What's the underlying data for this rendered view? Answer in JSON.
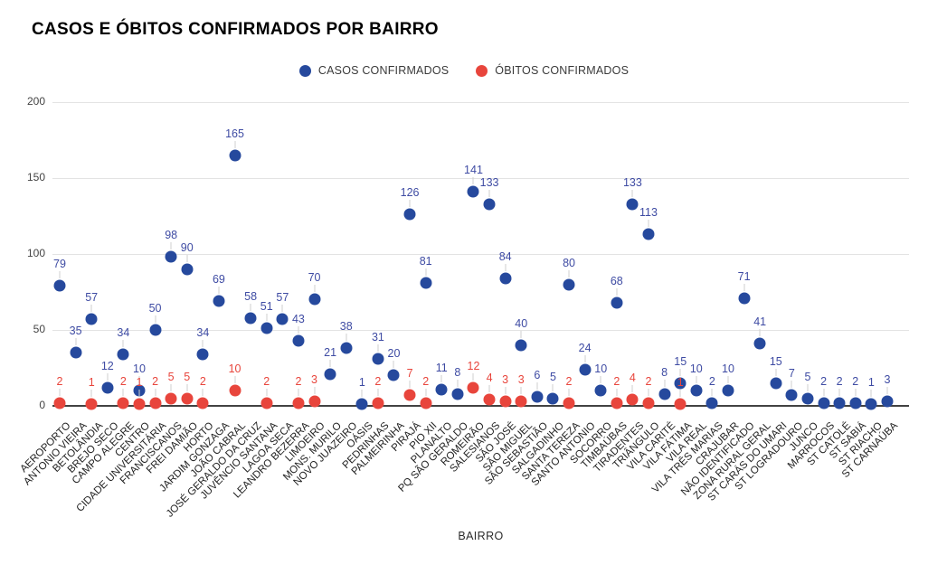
{
  "title": "CASOS E ÓBITOS CONFIRMADOS POR BAIRRO",
  "legend": [
    {
      "label": "CASOS CONFIRMADOS",
      "color": "#26499D"
    },
    {
      "label": "ÓBITOS CONFIRMADOS",
      "color": "#E8453C"
    }
  ],
  "chart_data": {
    "type": "scatter",
    "title": "CASOS E ÓBITOS CONFIRMADOS POR BAIRRO",
    "xlabel": "BAIRRO",
    "ylabel": "",
    "ylim": [
      0,
      200
    ],
    "yticks": [
      0,
      50,
      100,
      150,
      200
    ],
    "grid": true,
    "legend_position": "top-center",
    "categories": [
      "AEROPORTO",
      "ANTONIO VIEIRA",
      "BETOLÂNDIA",
      "BREJO SECO",
      "CAMPO ALEGRE",
      "CENTRO",
      "CIDADE UNIVERSITÁRIA",
      "FRANCISCANOS",
      "FREI DAMIÃO",
      "HORTO",
      "JARDIM GONZAGA",
      "JOÃO CABRAL",
      "JOSÉ GERALDO DA CRUZ",
      "JUVÊNCIO SANTANA",
      "LAGOA SECA",
      "LEANDRO BEZERRA",
      "LIMOEIRO",
      "MONS. MURILO",
      "NOVO JUAZEIRO",
      "OÁSIS",
      "PEDRINHAS",
      "PALMEIRINHA",
      "PIRAJÁ",
      "PIO XII",
      "PLANALTO",
      "PQ SÃO GERALDO",
      "ROMEIRÃO",
      "SALESIANOS",
      "SÃO JOSÉ",
      "SÃO MIGUEL",
      "SÃO SEBASTIÃO",
      "SALGADINHO",
      "SANTA TEREZA",
      "SANTO ANTONIO",
      "SOCORRO",
      "TIMBAÚBAS",
      "TIRADENTES",
      "TRIÂNGULO",
      "VILA CARITÉ",
      "VILA FÁTIMA",
      "VILA REAL",
      "VILA TRÊS MARIAS",
      "CRAJUBAR",
      "NÃO IDENTIFICADO",
      "ZONA RURAL GERAL",
      "ST CARÁS DO UMARI",
      "ST LOGRADOURO",
      "JUNCO",
      "MARROCOS",
      "ST CATOLÉ",
      "ST SABIÁ",
      "ST RIACHO",
      "ST CARNAÚBA"
    ],
    "series": [
      {
        "name": "CASOS CONFIRMADOS",
        "color": "#26499D",
        "label_color": "#3E4BA3",
        "values": [
          79,
          35,
          57,
          12,
          34,
          10,
          50,
          98,
          90,
          34,
          69,
          165,
          58,
          51,
          57,
          43,
          70,
          21,
          38,
          1,
          31,
          20,
          126,
          81,
          11,
          8,
          141,
          133,
          84,
          40,
          6,
          5,
          80,
          24,
          10,
          68,
          133,
          113,
          8,
          15,
          10,
          2,
          10,
          71,
          41,
          15,
          7,
          5,
          2,
          2,
          2,
          1,
          3
        ]
      },
      {
        "name": "ÓBITOS CONFIRMADOS",
        "color": "#E8453C",
        "label_color": "#E8453C",
        "values": [
          2,
          null,
          1,
          null,
          2,
          1,
          2,
          5,
          5,
          2,
          null,
          10,
          null,
          2,
          null,
          2,
          3,
          null,
          null,
          null,
          2,
          null,
          7,
          2,
          null,
          null,
          12,
          4,
          3,
          3,
          null,
          null,
          2,
          null,
          null,
          2,
          4,
          2,
          null,
          1,
          null,
          null,
          null,
          null,
          null,
          null,
          null,
          null,
          null,
          null,
          null,
          null,
          null
        ]
      }
    ]
  }
}
